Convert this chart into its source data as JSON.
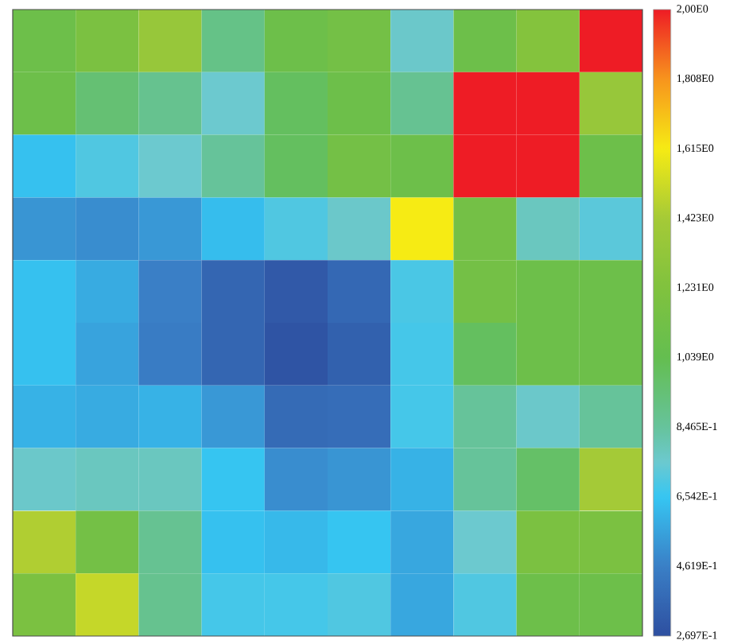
{
  "chart_data": {
    "type": "heatmap",
    "categories": [
      null,
      null,
      null,
      null,
      null,
      null,
      null,
      null,
      null,
      null
    ],
    "y_categories": [
      null,
      null,
      null,
      null,
      null,
      null,
      null,
      null,
      null,
      null
    ],
    "cells": [
      [
        1.1,
        1.2,
        1.35,
        0.9,
        1.1,
        1.15,
        0.76,
        1.1,
        1.25,
        2.0
      ],
      [
        1.1,
        0.95,
        0.88,
        0.75,
        1.0,
        1.1,
        0.87,
        2.0,
        2.0,
        1.35
      ],
      [
        0.64,
        0.7,
        0.75,
        0.85,
        1.0,
        1.15,
        1.1,
        2.0,
        2.0,
        1.1
      ],
      [
        0.52,
        0.5,
        0.53,
        0.63,
        0.7,
        0.76,
        1.615,
        1.15,
        0.78,
        0.72
      ],
      [
        0.64,
        0.58,
        0.46,
        0.36,
        0.31,
        0.37,
        0.69,
        1.15,
        1.1,
        1.1
      ],
      [
        0.64,
        0.56,
        0.45,
        0.36,
        0.29,
        0.34,
        0.68,
        1.0,
        1.1,
        1.1
      ],
      [
        0.6,
        0.58,
        0.6,
        0.53,
        0.38,
        0.39,
        0.68,
        0.85,
        0.76,
        0.85
      ],
      [
        0.76,
        0.78,
        0.78,
        0.65,
        0.5,
        0.52,
        0.6,
        0.85,
        0.98,
        1.42
      ],
      [
        1.45,
        1.15,
        0.87,
        0.64,
        0.62,
        0.65,
        0.57,
        0.75,
        1.2,
        1.2
      ],
      [
        1.2,
        1.5,
        0.88,
        0.68,
        0.68,
        0.7,
        0.57,
        0.7,
        1.1,
        1.1
      ]
    ],
    "clim": [
      0.2697,
      2.0
    ],
    "cticks": [
      {
        "value": 2.0,
        "label": "2,00E0"
      },
      {
        "value": 1.808,
        "label": "1,808E0"
      },
      {
        "value": 1.615,
        "label": "1,615E0"
      },
      {
        "value": 1.423,
        "label": "1,423E0"
      },
      {
        "value": 1.231,
        "label": "1,231E0"
      },
      {
        "value": 1.039,
        "label": "1,039E0"
      },
      {
        "value": 0.8465,
        "label": "8,465E-1"
      },
      {
        "value": 0.6542,
        "label": "6,542E-1"
      },
      {
        "value": 0.4619,
        "label": "4,619E-1"
      },
      {
        "value": 0.2697,
        "label": "2,697E-1"
      }
    ]
  }
}
